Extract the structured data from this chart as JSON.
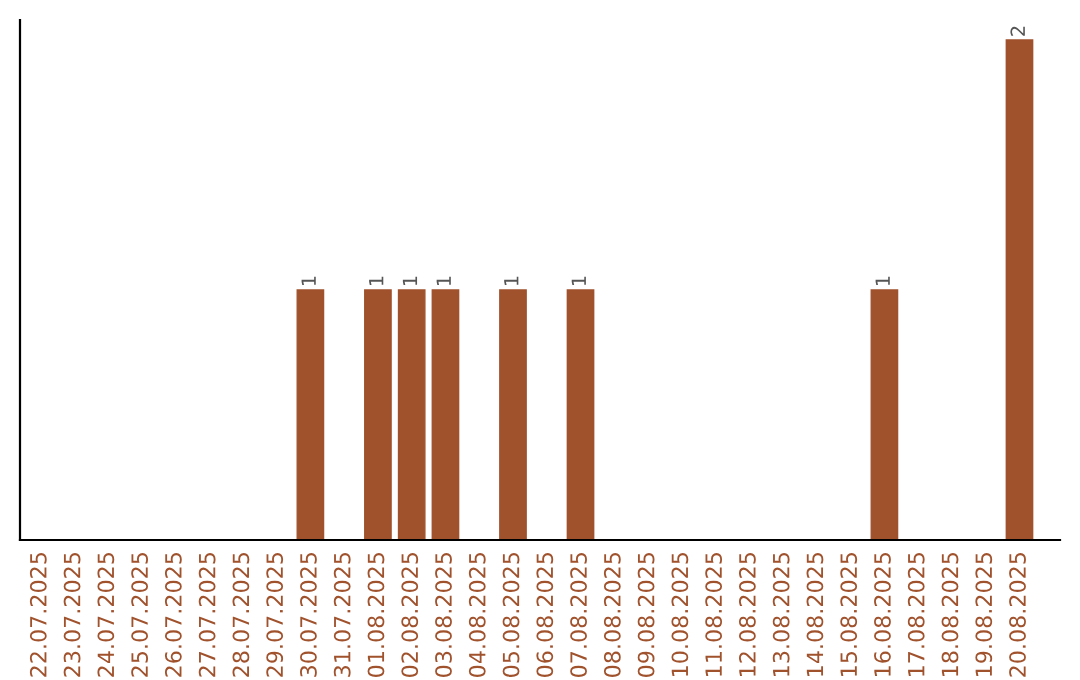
{
  "chart_data": {
    "type": "bar",
    "categories": [
      "22.07.2025",
      "23.07.2025",
      "24.07.2025",
      "25.07.2025",
      "26.07.2025",
      "27.07.2025",
      "28.07.2025",
      "29.07.2025",
      "30.07.2025",
      "31.07.2025",
      "01.08.2025",
      "02.08.2025",
      "03.08.2025",
      "04.08.2025",
      "05.08.2025",
      "06.08.2025",
      "07.08.2025",
      "08.08.2025",
      "09.08.2025",
      "10.08.2025",
      "11.08.2025",
      "12.08.2025",
      "13.08.2025",
      "14.08.2025",
      "15.08.2025",
      "16.08.2025",
      "17.08.2025",
      "18.08.2025",
      "19.08.2025",
      "20.08.2025"
    ],
    "values": [
      0,
      0,
      0,
      0,
      0,
      0,
      0,
      0,
      1,
      0,
      1,
      1,
      1,
      0,
      1,
      0,
      1,
      0,
      0,
      0,
      0,
      0,
      0,
      0,
      0,
      1,
      0,
      0,
      0,
      2
    ],
    "value_labels": [
      null,
      null,
      null,
      null,
      null,
      null,
      null,
      null,
      "1",
      null,
      "1",
      "1",
      "1",
      null,
      "1",
      null,
      "1",
      null,
      null,
      null,
      null,
      null,
      null,
      null,
      null,
      "1",
      null,
      null,
      null,
      "2"
    ],
    "color": "#a0522d",
    "ylim": [
      0,
      2.08
    ],
    "tick_labels": "x",
    "grid": false,
    "legend": false
  }
}
